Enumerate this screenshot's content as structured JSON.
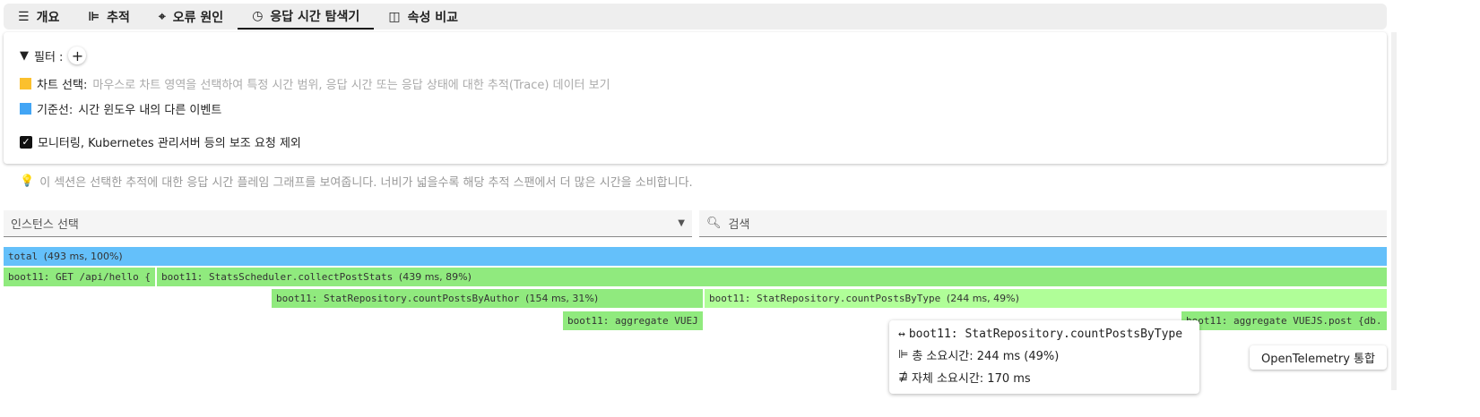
{
  "tabs": [
    {
      "label": "개요",
      "icon": "list-icon"
    },
    {
      "label": "추적",
      "icon": "trace-icon"
    },
    {
      "label": "오류 원인",
      "icon": "crosshair-icon"
    },
    {
      "label": "응답 시간 탐색기",
      "icon": "clock-icon",
      "active": true
    },
    {
      "label": "속성 비교",
      "icon": "compare-icon"
    }
  ],
  "filter": {
    "label": "필터 :",
    "chart_select_label": "차트 선택:",
    "chart_select_desc": "마우스로 차트 영역을 선택하여 특정 시간 범위, 응답 시간 또는 응답 상태에 대한 추적(Trace) 데이터 보기",
    "baseline_label": "기준선:",
    "baseline_desc": "시간 윈도우 내의 다른 이벤트",
    "exclude_label": "모니터링, Kubernetes 관리서버 등의 보조 요청 제외",
    "exclude_checked": true,
    "colors": {
      "selection": "#fbc02d",
      "baseline": "#42a5f5"
    }
  },
  "hint": "이 섹션은 선택한 추적에 대한 응답 시간 플레임 그래프를 보여줍니다. 너비가 넓을수록 해당 추적 스팬에서 더 많은 시간을 소비합니다.",
  "instance_select": {
    "placeholder": "인스턴스 선택"
  },
  "search": {
    "placeholder": "검색"
  },
  "flame": [
    {
      "name": "total",
      "meta": "(493 ms, 100%)",
      "color": "#64c0fa"
    },
    {
      "name": "boot11: GET /api/hello {",
      "meta": "",
      "color": "#90ea7e"
    },
    {
      "name": "boot11: StatsScheduler.collectPostStats",
      "meta": "(439 ms, 89%)",
      "color": "#90ea7e"
    },
    {
      "name": "boot11: StatRepository.countPostsByAuthor",
      "meta": "(154 ms, 31%)",
      "color": "#90ea7e"
    },
    {
      "name": "boot11: StatRepository.countPostsByType",
      "meta": "(244 ms, 49%)",
      "color": "#b0fe98"
    },
    {
      "name": "boot11: aggregate VUEJ",
      "meta": "",
      "color": "#90ea7e"
    },
    {
      "name": "boot11: aggregate VUEJS.post {db.",
      "meta": "",
      "color": "#90ea7e"
    }
  ],
  "tooltip": {
    "title": "boot11: StatRepository.countPostsByType",
    "total": "총 소요시간: 244 ms (49%)",
    "self": "자체 소요시간: 170 ms"
  },
  "otel_button": "OpenTelemetry 통합"
}
